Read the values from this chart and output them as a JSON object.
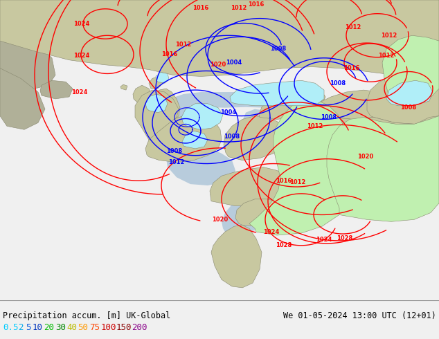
{
  "title_left": "Precipitation accum. [m] UK-Global",
  "title_right": "We 01-05-2024 13:00 UTC (12+01)",
  "legend_values": [
    "0.5",
    "2",
    "5",
    "10",
    "20",
    "30",
    "40",
    "50",
    "75",
    "100",
    "150",
    "200"
  ],
  "legend_colors_display": [
    "#00ccff",
    "#00aaee",
    "#0055dd",
    "#0033bb",
    "#00bb00",
    "#008800",
    "#bbbb00",
    "#ff9900",
    "#ff4400",
    "#cc0000",
    "#880000",
    "#880088"
  ],
  "outside_color": "#a0a0a8",
  "domain_color": "#f8f8f8",
  "land_color": "#c8c8a0",
  "ocean_color": "#a8b8c8",
  "green_prec_color": "#c0f0b0",
  "cyan_prec_color": "#b0eef8",
  "fig_width": 6.34,
  "fig_height": 4.9,
  "dpi": 100,
  "font_size_title": 8.5,
  "font_size_legend": 9,
  "font_size_label": 6,
  "bg_color": "#f0f0f0",
  "text_color": "#000000"
}
